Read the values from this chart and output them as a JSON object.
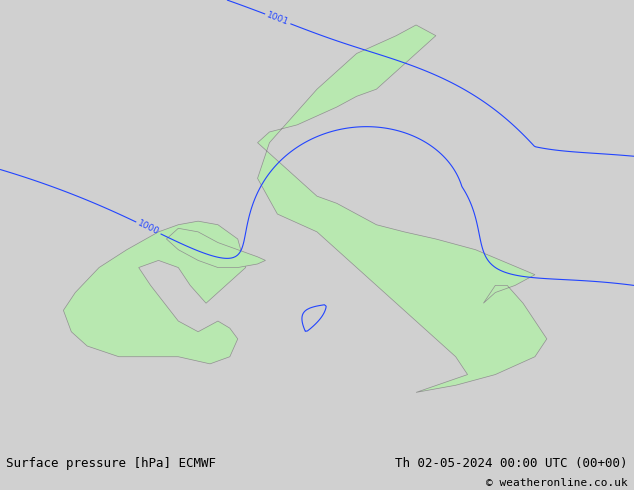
{
  "title_left": "Surface pressure [hPa] ECMWF",
  "title_right": "Th 02-05-2024 00:00 UTC (00+00)",
  "copyright": "© weatheronline.co.uk",
  "background_color": "#d0d0d0",
  "land_color": "#b8e8b0",
  "land_edge_color": "#909090",
  "red_contour_color": "#ee1100",
  "black_contour_color": "#000000",
  "blue_contour_color": "#2244ff",
  "red_levels": [
    1014,
    1015,
    1016,
    1017,
    1018,
    1019,
    1020
  ],
  "black_levels": [
    1013
  ],
  "blue_levels": [
    1000,
    1001,
    1002,
    1003,
    1004,
    1005,
    1006,
    1007,
    1008,
    1009,
    1010,
    1011,
    1012
  ],
  "figsize": [
    6.34,
    4.9
  ],
  "dpi": 100,
  "font_size_bottom": 9,
  "font_size_copyright": 8
}
